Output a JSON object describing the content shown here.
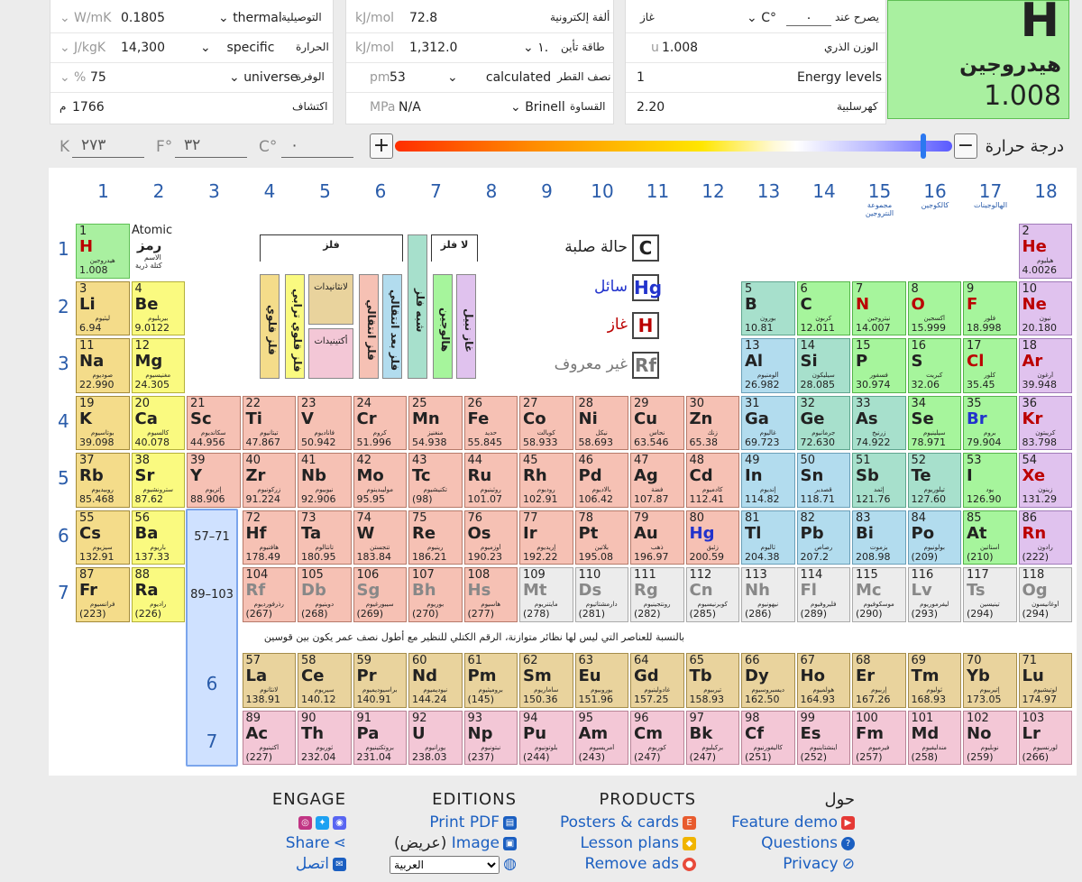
{
  "props_panel_1": {
    "rows": [
      {
        "label": "التوصيلية",
        "value": "thermal",
        "num": "0.1805",
        "unit": "W/mK",
        "dd": "⌄"
      },
      {
        "label": "الحرارة",
        "value": "specific",
        "num": "14,300",
        "unit": "J/kgK",
        "dd": "⌄"
      },
      {
        "label": "الوفرة",
        "value": "universe",
        "num": "75",
        "unit": "%",
        "dd": "⌄"
      },
      {
        "label": "اكتشاف",
        "num": "1766",
        "unit": "م"
      }
    ]
  },
  "props_panel_2": {
    "rows": [
      {
        "label": "ألفة إلكترونية",
        "num": "72.8",
        "unit": "kJ/mol"
      },
      {
        "label": "طاقة تأين",
        "value": "١.",
        "num": "1,312.0",
        "unit": "kJ/mol",
        "dd": "⌄"
      },
      {
        "label": "نصف القطر",
        "value": "calculated",
        "num": "53",
        "unit": "pm",
        "dd": "⌄"
      },
      {
        "label": "القساوة",
        "value": "Brinell",
        "num": "N/A",
        "unit": "MPa",
        "dd": "⌄"
      }
    ]
  },
  "props_panel_3": {
    "rows": [
      {
        "label": "يصرح عند",
        "value": "٠",
        "unit": "C°",
        "side": "غاز"
      },
      {
        "label": "الوزن الذري",
        "num": "1.008",
        "unit": "u"
      },
      {
        "label": "Energy levels",
        "num": "1"
      },
      {
        "label": "كهرسلبية",
        "num": "2.20"
      }
    ]
  },
  "selected": {
    "symbol": "H",
    "name": "هيدروجين",
    "mass": "1.008"
  },
  "temperature": {
    "label": "درجة حرارة",
    "k_unit": "K",
    "k_val": "٢٧٣",
    "f_unit": "F°",
    "f_val": "٣٢",
    "c_unit": "C°",
    "c_val": "٠",
    "plus": "+",
    "minus": "−"
  },
  "groups": [
    "1",
    "2",
    "3",
    "4",
    "5",
    "6",
    "7",
    "8",
    "9",
    "10",
    "11",
    "12",
    "13",
    "14",
    "15",
    "16",
    "17",
    "18"
  ],
  "group_names": {
    "15": "مجموعة النتروجين",
    "16": "كالكوجين",
    "17": "الهالوجينات"
  },
  "periods": [
    "1",
    "2",
    "3",
    "4",
    "5",
    "6",
    "7"
  ],
  "key": {
    "atomic": "Atomic",
    "symbol": "رمز",
    "name": "الاسم",
    "mass": "كتلة ذرية"
  },
  "legend": {
    "metal": "فلز",
    "nonmetal": "لا فلز",
    "alk": "فلز قلوي",
    "ae": "فلز قلوي ترابي",
    "lan": "لانثانيدات",
    "act": "أكتينيدات",
    "tm": "فلز انتقالي",
    "ptm": "فلز بعد انتقالي",
    "met": "شبه فلز",
    "hal": "هالوجين",
    "nm": "غاز نبيل",
    "ng": "الاخرى"
  },
  "states": [
    {
      "sym": "C",
      "label": "حالة صلبة"
    },
    {
      "sym": "Hg",
      "label": "سائل"
    },
    {
      "sym": "H",
      "label": "غاز"
    },
    {
      "sym": "Rf",
      "label": "غير معروف"
    }
  ],
  "ref_57": "57–71",
  "ref_89": "89–103",
  "lan_row": "6",
  "act_row": "7",
  "note": "بالنسبة للعناصر التي ليس لها نظائر متوازنة، الرقم الكتلي للنظير مع أطول نصف عمر يكون بين قوسين",
  "elements": [
    [
      "1",
      "H",
      "هيدروجين",
      "1.008",
      1,
      1,
      "h",
      "gas"
    ],
    [
      "2",
      "He",
      "هيليوم",
      "4.0026",
      18,
      1,
      "ng",
      "gas"
    ],
    [
      "3",
      "Li",
      "ليثيوم",
      "6.94",
      1,
      2,
      "alk",
      ""
    ],
    [
      "4",
      "Be",
      "بيريليوم",
      "9.0122",
      2,
      2,
      "ae",
      ""
    ],
    [
      "5",
      "B",
      "بورون",
      "10.81",
      13,
      2,
      "met",
      ""
    ],
    [
      "6",
      "C",
      "كربون",
      "12.011",
      14,
      2,
      "nm",
      ""
    ],
    [
      "7",
      "N",
      "نيتروجين",
      "14.007",
      15,
      2,
      "nm",
      "gas"
    ],
    [
      "8",
      "O",
      "أكسجين",
      "15.999",
      16,
      2,
      "nm",
      "gas"
    ],
    [
      "9",
      "F",
      "فلور",
      "18.998",
      17,
      2,
      "hal",
      "gas"
    ],
    [
      "10",
      "Ne",
      "نيون",
      "20.180",
      18,
      2,
      "ng",
      "gas"
    ],
    [
      "11",
      "Na",
      "صوديوم",
      "22.990",
      1,
      3,
      "alk",
      ""
    ],
    [
      "12",
      "Mg",
      "مغنيسيوم",
      "24.305",
      2,
      3,
      "ae",
      ""
    ],
    [
      "13",
      "Al",
      "ألومنيوم",
      "26.982",
      13,
      3,
      "ptm",
      ""
    ],
    [
      "14",
      "Si",
      "سيليكون",
      "28.085",
      14,
      3,
      "met",
      ""
    ],
    [
      "15",
      "P",
      "فسفور",
      "30.974",
      15,
      3,
      "nm",
      ""
    ],
    [
      "16",
      "S",
      "كبريت",
      "32.06",
      16,
      3,
      "nm",
      ""
    ],
    [
      "17",
      "Cl",
      "كلور",
      "35.45",
      17,
      3,
      "hal",
      "gas"
    ],
    [
      "18",
      "Ar",
      "أرغون",
      "39.948",
      18,
      3,
      "ng",
      "gas"
    ],
    [
      "19",
      "K",
      "بوتاسيوم",
      "39.098",
      1,
      4,
      "alk",
      ""
    ],
    [
      "20",
      "Ca",
      "كالسيوم",
      "40.078",
      2,
      4,
      "ae",
      ""
    ],
    [
      "21",
      "Sc",
      "سكانديوم",
      "44.956",
      3,
      4,
      "tm",
      ""
    ],
    [
      "22",
      "Ti",
      "تيتانيوم",
      "47.867",
      4,
      4,
      "tm",
      ""
    ],
    [
      "23",
      "V",
      "فاناديوم",
      "50.942",
      5,
      4,
      "tm",
      ""
    ],
    [
      "24",
      "Cr",
      "كروم",
      "51.996",
      6,
      4,
      "tm",
      ""
    ],
    [
      "25",
      "Mn",
      "منغنيز",
      "54.938",
      7,
      4,
      "tm",
      ""
    ],
    [
      "26",
      "Fe",
      "حديد",
      "55.845",
      8,
      4,
      "tm",
      ""
    ],
    [
      "27",
      "Co",
      "كوبالت",
      "58.933",
      9,
      4,
      "tm",
      ""
    ],
    [
      "28",
      "Ni",
      "نيكل",
      "58.693",
      10,
      4,
      "tm",
      ""
    ],
    [
      "29",
      "Cu",
      "نحاس",
      "63.546",
      11,
      4,
      "tm",
      ""
    ],
    [
      "30",
      "Zn",
      "زنك",
      "65.38",
      12,
      4,
      "tm",
      ""
    ],
    [
      "31",
      "Ga",
      "غاليوم",
      "69.723",
      13,
      4,
      "ptm",
      ""
    ],
    [
      "32",
      "Ge",
      "جرمانيوم",
      "72.630",
      14,
      4,
      "met",
      ""
    ],
    [
      "33",
      "As",
      "زرنيخ",
      "74.922",
      15,
      4,
      "met",
      ""
    ],
    [
      "34",
      "Se",
      "سيلينيوم",
      "78.971",
      16,
      4,
      "nm",
      ""
    ],
    [
      "35",
      "Br",
      "بروم",
      "79.904",
      17,
      4,
      "hal",
      "liq"
    ],
    [
      "36",
      "Kr",
      "كريبتون",
      "83.798",
      18,
      4,
      "ng",
      "gas"
    ],
    [
      "37",
      "Rb",
      "روبيديوم",
      "85.468",
      1,
      5,
      "alk",
      ""
    ],
    [
      "38",
      "Sr",
      "سترونشيوم",
      "87.62",
      2,
      5,
      "ae",
      ""
    ],
    [
      "39",
      "Y",
      "إتريوم",
      "88.906",
      3,
      5,
      "tm",
      ""
    ],
    [
      "40",
      "Zr",
      "زركونيوم",
      "91.224",
      4,
      5,
      "tm",
      ""
    ],
    [
      "41",
      "Nb",
      "نيوبيوم",
      "92.906",
      5,
      5,
      "tm",
      ""
    ],
    [
      "42",
      "Mo",
      "موليبدينوم",
      "95.95",
      6,
      5,
      "tm",
      ""
    ],
    [
      "43",
      "Tc",
      "تكنيشيوم",
      "(98)",
      7,
      5,
      "tm",
      ""
    ],
    [
      "44",
      "Ru",
      "روثينيوم",
      "101.07",
      8,
      5,
      "tm",
      ""
    ],
    [
      "45",
      "Rh",
      "روديوم",
      "102.91",
      9,
      5,
      "tm",
      ""
    ],
    [
      "46",
      "Pd",
      "بالاديوم",
      "106.42",
      10,
      5,
      "tm",
      ""
    ],
    [
      "47",
      "Ag",
      "فضة",
      "107.87",
      11,
      5,
      "tm",
      ""
    ],
    [
      "48",
      "Cd",
      "كادميوم",
      "112.41",
      12,
      5,
      "tm",
      ""
    ],
    [
      "49",
      "In",
      "إنديوم",
      "114.82",
      13,
      5,
      "ptm",
      ""
    ],
    [
      "50",
      "Sn",
      "قصدير",
      "118.71",
      14,
      5,
      "ptm",
      ""
    ],
    [
      "51",
      "Sb",
      "إثمد",
      "121.76",
      15,
      5,
      "met",
      ""
    ],
    [
      "52",
      "Te",
      "تيلوريوم",
      "127.60",
      16,
      5,
      "met",
      ""
    ],
    [
      "53",
      "I",
      "يود",
      "126.90",
      17,
      5,
      "hal",
      ""
    ],
    [
      "54",
      "Xe",
      "زينون",
      "131.29",
      18,
      5,
      "ng",
      "gas"
    ],
    [
      "55",
      "Cs",
      "سيزيوم",
      "132.91",
      1,
      6,
      "alk",
      ""
    ],
    [
      "56",
      "Ba",
      "باريوم",
      "137.33",
      2,
      6,
      "ae",
      ""
    ],
    [
      "72",
      "Hf",
      "هافنيوم",
      "178.49",
      4,
      6,
      "tm",
      ""
    ],
    [
      "73",
      "Ta",
      "تانتالوم",
      "180.95",
      5,
      6,
      "tm",
      ""
    ],
    [
      "74",
      "W",
      "تنجستن",
      "183.84",
      6,
      6,
      "tm",
      ""
    ],
    [
      "75",
      "Re",
      "رينيوم",
      "186.21",
      7,
      6,
      "tm",
      ""
    ],
    [
      "76",
      "Os",
      "أوزميوم",
      "190.23",
      8,
      6,
      "tm",
      ""
    ],
    [
      "77",
      "Ir",
      "إريديوم",
      "192.22",
      9,
      6,
      "tm",
      ""
    ],
    [
      "78",
      "Pt",
      "بلاتين",
      "195.08",
      10,
      6,
      "tm",
      ""
    ],
    [
      "79",
      "Au",
      "ذهب",
      "196.97",
      11,
      6,
      "tm",
      ""
    ],
    [
      "80",
      "Hg",
      "زئبق",
      "200.59",
      12,
      6,
      "tm",
      "liq"
    ],
    [
      "81",
      "Tl",
      "ثاليوم",
      "204.38",
      13,
      6,
      "ptm",
      ""
    ],
    [
      "82",
      "Pb",
      "رصاص",
      "207.2",
      14,
      6,
      "ptm",
      ""
    ],
    [
      "83",
      "Bi",
      "بزموت",
      "208.98",
      15,
      6,
      "ptm",
      ""
    ],
    [
      "84",
      "Po",
      "بولونيوم",
      "(209)",
      16,
      6,
      "ptm",
      ""
    ],
    [
      "85",
      "At",
      "أستاتين",
      "(210)",
      17,
      6,
      "hal",
      ""
    ],
    [
      "86",
      "Rn",
      "رادون",
      "(222)",
      18,
      6,
      "ng",
      "gas"
    ],
    [
      "87",
      "Fr",
      "فرانسيوم",
      "(223)",
      1,
      7,
      "alk",
      ""
    ],
    [
      "88",
      "Ra",
      "راديوم",
      "(226)",
      2,
      7,
      "ae",
      ""
    ],
    [
      "104",
      "Rf",
      "رذرفورديوم",
      "(267)",
      4,
      7,
      "tm",
      "unk"
    ],
    [
      "105",
      "Db",
      "دوبنيوم",
      "(268)",
      5,
      7,
      "tm",
      "unk"
    ],
    [
      "106",
      "Sg",
      "سيبورغيوم",
      "(269)",
      6,
      7,
      "tm",
      "unk"
    ],
    [
      "107",
      "Bh",
      "بوريوم",
      "(270)",
      7,
      7,
      "tm",
      "unk"
    ],
    [
      "108",
      "Hs",
      "هاسيوم",
      "(277)",
      8,
      7,
      "tm",
      "unk"
    ],
    [
      "109",
      "Mt",
      "مايتنريوم",
      "(278)",
      9,
      7,
      "unk",
      "unk"
    ],
    [
      "110",
      "Ds",
      "دارمشتاتيوم",
      "(281)",
      10,
      7,
      "unk",
      "unk"
    ],
    [
      "111",
      "Rg",
      "رونتجينيوم",
      "(282)",
      11,
      7,
      "unk",
      "unk"
    ],
    [
      "112",
      "Cn",
      "كوبرنيسيوم",
      "(285)",
      12,
      7,
      "unk",
      "unk"
    ],
    [
      "113",
      "Nh",
      "نيهونيوم",
      "(286)",
      13,
      7,
      "unk",
      "unk"
    ],
    [
      "114",
      "Fl",
      "فليروفيوم",
      "(289)",
      14,
      7,
      "unk",
      "unk"
    ],
    [
      "115",
      "Mc",
      "موسكوفيوم",
      "(290)",
      15,
      7,
      "unk",
      "unk"
    ],
    [
      "116",
      "Lv",
      "ليفرموريوم",
      "(293)",
      16,
      7,
      "unk",
      "unk"
    ],
    [
      "117",
      "Ts",
      "تينيسين",
      "(294)",
      17,
      7,
      "unk",
      "unk"
    ],
    [
      "118",
      "Og",
      "أوغانيسون",
      "(294)",
      18,
      7,
      "unk",
      "unk"
    ],
    [
      "57",
      "La",
      "لانثانوم",
      "138.91",
      4,
      9,
      "lan",
      ""
    ],
    [
      "58",
      "Ce",
      "سيريوم",
      "140.12",
      5,
      9,
      "lan",
      ""
    ],
    [
      "59",
      "Pr",
      "براسيوديميوم",
      "140.91",
      6,
      9,
      "lan",
      ""
    ],
    [
      "60",
      "Nd",
      "نيوديميوم",
      "144.24",
      7,
      9,
      "lan",
      ""
    ],
    [
      "61",
      "Pm",
      "بروميثيوم",
      "(145)",
      8,
      9,
      "lan",
      ""
    ],
    [
      "62",
      "Sm",
      "ساماريوم",
      "150.36",
      9,
      9,
      "lan",
      ""
    ],
    [
      "63",
      "Eu",
      "يوروبيوم",
      "151.96",
      10,
      9,
      "lan",
      ""
    ],
    [
      "64",
      "Gd",
      "غادولينيوم",
      "157.25",
      11,
      9,
      "lan",
      ""
    ],
    [
      "65",
      "Tb",
      "تيربيوم",
      "158.93",
      12,
      9,
      "lan",
      ""
    ],
    [
      "66",
      "Dy",
      "ديسبروسيوم",
      "162.50",
      13,
      9,
      "lan",
      ""
    ],
    [
      "67",
      "Ho",
      "هولميوم",
      "164.93",
      14,
      9,
      "lan",
      ""
    ],
    [
      "68",
      "Er",
      "إربيوم",
      "167.26",
      15,
      9,
      "lan",
      ""
    ],
    [
      "69",
      "Tm",
      "ثوليوم",
      "168.93",
      16,
      9,
      "lan",
      ""
    ],
    [
      "70",
      "Yb",
      "إتيربيوم",
      "173.05",
      17,
      9,
      "lan",
      ""
    ],
    [
      "71",
      "Lu",
      "لوتيشيوم",
      "174.97",
      18,
      9,
      "lan",
      ""
    ],
    [
      "89",
      "Ac",
      "أكتينيوم",
      "(227)",
      4,
      10,
      "act",
      ""
    ],
    [
      "90",
      "Th",
      "ثوريوم",
      "232.04",
      5,
      10,
      "act",
      ""
    ],
    [
      "91",
      "Pa",
      "بروتكتينيوم",
      "231.04",
      6,
      10,
      "act",
      ""
    ],
    [
      "92",
      "U",
      "يورانيوم",
      "238.03",
      7,
      10,
      "act",
      ""
    ],
    [
      "93",
      "Np",
      "نبتونيوم",
      "(237)",
      8,
      10,
      "act",
      ""
    ],
    [
      "94",
      "Pu",
      "بلوتونيوم",
      "(244)",
      9,
      10,
      "act",
      ""
    ],
    [
      "95",
      "Am",
      "أمريسيوم",
      "(243)",
      10,
      10,
      "act",
      ""
    ],
    [
      "96",
      "Cm",
      "كوريوم",
      "(247)",
      11,
      10,
      "act",
      ""
    ],
    [
      "97",
      "Bk",
      "بركيليوم",
      "(247)",
      12,
      10,
      "act",
      ""
    ],
    [
      "98",
      "Cf",
      "كاليفورنيوم",
      "(251)",
      13,
      10,
      "act",
      ""
    ],
    [
      "99",
      "Es",
      "أينشتاينيوم",
      "(252)",
      14,
      10,
      "act",
      ""
    ],
    [
      "100",
      "Fm",
      "فيرميوم",
      "(257)",
      15,
      10,
      "act",
      ""
    ],
    [
      "101",
      "Md",
      "مندليفيوم",
      "(258)",
      16,
      10,
      "act",
      ""
    ],
    [
      "102",
      "No",
      "نوبليوم",
      "(259)",
      17,
      10,
      "act",
      ""
    ],
    [
      "103",
      "Lr",
      "لورنسيوم",
      "(266)",
      18,
      10,
      "act",
      ""
    ]
  ],
  "footer": {
    "engage": {
      "title": "ENGAGE",
      "share": "Share",
      "contact": "اتصل"
    },
    "editions": {
      "title": "EDITIONS",
      "print": "Print PDF",
      "image_pre": "(عريض)",
      "image": "Image",
      "lang": "العربية"
    },
    "products": {
      "title": "PRODUCTS",
      "posters": "Posters & cards",
      "lessons": "Lesson plans",
      "ads": "Remove ads"
    },
    "about": {
      "title": "حول",
      "demo": "Feature demo",
      "questions": "Questions",
      "privacy": "Privacy"
    }
  }
}
